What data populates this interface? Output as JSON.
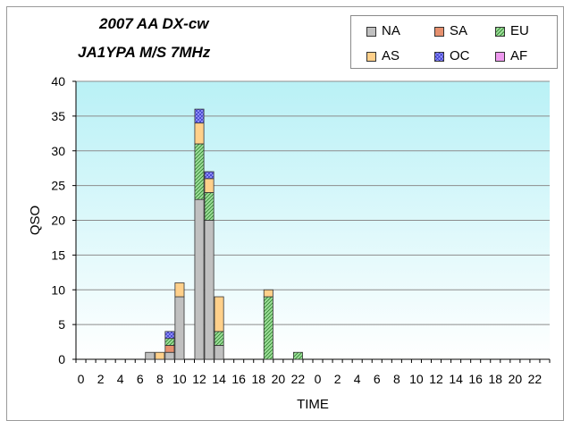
{
  "title": "2007 AA DX-cw",
  "subtitle": "JA1YPA  M/S  7MHz",
  "colors": {
    "NA": "#c0c0c0",
    "SA": "#e6906e",
    "EU": "#9ee09a",
    "AS": "#ffd08a",
    "OC": "#9a9aff",
    "AF": "#ee99ee"
  },
  "legend": [
    {
      "key": "NA",
      "label": "NA",
      "pattern": "solid"
    },
    {
      "key": "SA",
      "label": "SA",
      "pattern": "solid"
    },
    {
      "key": "EU",
      "label": "EU",
      "pattern": "hatch"
    },
    {
      "key": "AS",
      "label": "AS",
      "pattern": "solid"
    },
    {
      "key": "OC",
      "label": "OC",
      "pattern": "check"
    },
    {
      "key": "AF",
      "label": "AF",
      "pattern": "solid"
    }
  ],
  "chart_data": {
    "type": "bar",
    "stacked": true,
    "xlabel": "TIME",
    "ylabel": "QSO",
    "ylim": [
      0,
      40
    ],
    "yticks": [
      0,
      5,
      10,
      15,
      20,
      25,
      30,
      35,
      40
    ],
    "grid": true,
    "legend_position": "top-right",
    "categories": [
      "0",
      "1",
      "2",
      "3",
      "4",
      "5",
      "6",
      "7",
      "8",
      "9",
      "10",
      "11",
      "12",
      "13",
      "14",
      "15",
      "16",
      "17",
      "18",
      "19",
      "20",
      "21",
      "22",
      "23",
      "0",
      "1",
      "2",
      "3",
      "4",
      "5",
      "6",
      "7",
      "8",
      "9",
      "10",
      "11",
      "12",
      "13",
      "14",
      "15",
      "16",
      "17",
      "18",
      "19",
      "20",
      "21",
      "22",
      "23"
    ],
    "tick_labels": [
      "0",
      "2",
      "4",
      "6",
      "8",
      "10",
      "12",
      "14",
      "16",
      "18",
      "20",
      "22",
      "0",
      "2",
      "4",
      "6",
      "8",
      "10",
      "12",
      "14",
      "16",
      "18",
      "20",
      "22"
    ],
    "series": [
      {
        "name": "NA",
        "values": [
          0,
          0,
          0,
          0,
          0,
          0,
          0,
          1,
          0,
          1,
          9,
          0,
          23,
          20,
          2,
          0,
          0,
          0,
          0,
          0,
          0,
          0,
          0,
          0,
          0,
          0,
          0,
          0,
          0,
          0,
          0,
          0,
          0,
          0,
          0,
          0,
          0,
          0,
          0,
          0,
          0,
          0,
          0,
          0,
          0,
          0,
          0,
          0
        ]
      },
      {
        "name": "SA",
        "values": [
          0,
          0,
          0,
          0,
          0,
          0,
          0,
          0,
          0,
          1,
          0,
          0,
          0,
          0,
          0,
          0,
          0,
          0,
          0,
          0,
          0,
          0,
          0,
          0,
          0,
          0,
          0,
          0,
          0,
          0,
          0,
          0,
          0,
          0,
          0,
          0,
          0,
          0,
          0,
          0,
          0,
          0,
          0,
          0,
          0,
          0,
          0,
          0
        ]
      },
      {
        "name": "EU",
        "values": [
          0,
          0,
          0,
          0,
          0,
          0,
          0,
          0,
          0,
          1,
          0,
          0,
          8,
          4,
          2,
          0,
          0,
          0,
          0,
          9,
          0,
          0,
          1,
          0,
          0,
          0,
          0,
          0,
          0,
          0,
          0,
          0,
          0,
          0,
          0,
          0,
          0,
          0,
          0,
          0,
          0,
          0,
          0,
          0,
          0,
          0,
          0,
          0
        ]
      },
      {
        "name": "AS",
        "values": [
          0,
          0,
          0,
          0,
          0,
          0,
          0,
          0,
          1,
          0,
          2,
          0,
          3,
          2,
          5,
          0,
          0,
          0,
          0,
          1,
          0,
          0,
          0,
          0,
          0,
          0,
          0,
          0,
          0,
          0,
          0,
          0,
          0,
          0,
          0,
          0,
          0,
          0,
          0,
          0,
          0,
          0,
          0,
          0,
          0,
          0,
          0,
          0
        ]
      },
      {
        "name": "OC",
        "values": [
          0,
          0,
          0,
          0,
          0,
          0,
          0,
          0,
          0,
          1,
          0,
          0,
          2,
          1,
          0,
          0,
          0,
          0,
          0,
          0,
          0,
          0,
          0,
          0,
          0,
          0,
          0,
          0,
          0,
          0,
          0,
          0,
          0,
          0,
          0,
          0,
          0,
          0,
          0,
          0,
          0,
          0,
          0,
          0,
          0,
          0,
          0,
          0
        ]
      },
      {
        "name": "AF",
        "values": [
          0,
          0,
          0,
          0,
          0,
          0,
          0,
          0,
          0,
          0,
          0,
          0,
          0,
          0,
          0,
          0,
          0,
          0,
          0,
          0,
          0,
          0,
          0,
          0,
          0,
          0,
          0,
          0,
          0,
          0,
          0,
          0,
          0,
          0,
          0,
          0,
          0,
          0,
          0,
          0,
          0,
          0,
          0,
          0,
          0,
          0,
          0,
          0
        ]
      }
    ]
  }
}
